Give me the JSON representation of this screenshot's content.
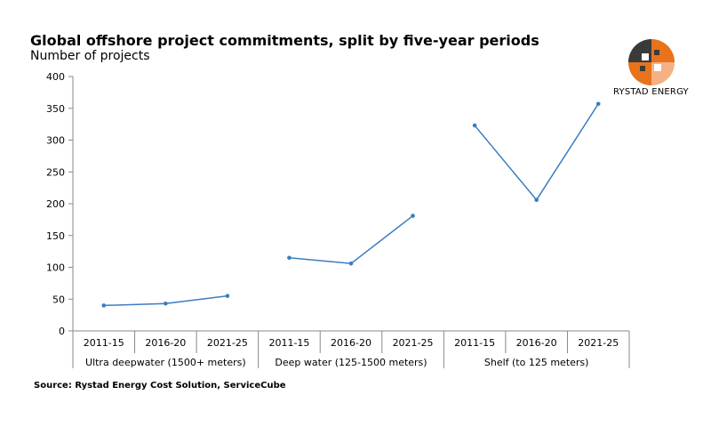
{
  "header": {
    "title": "Global offshore project commitments, split by five-year periods",
    "subtitle": "Number of projects"
  },
  "footer": {
    "source": "Source: Rystad Energy Cost Solution, ServiceCube"
  },
  "logo": {
    "text": "RYSTAD ENERGY",
    "colors": {
      "orange": "#E8731B",
      "dark": "#3a3a3a",
      "light": "#bdbdbd"
    }
  },
  "chart_data": {
    "type": "line",
    "title": "Global offshore project commitments, split by five-year periods",
    "ylabel": "Number of projects",
    "ylim": [
      0,
      400
    ],
    "yticks": [
      0,
      50,
      100,
      150,
      200,
      250,
      300,
      350,
      400
    ],
    "grid": false,
    "legend": "none",
    "line_color": "#3A7DC1",
    "groups": [
      {
        "name": "Ultra deepwater (1500+ meters)",
        "categories": [
          "2011-15",
          "2016-20",
          "2021-25"
        ],
        "values": [
          40,
          43,
          55
        ]
      },
      {
        "name": "Deep water (125-1500 meters)",
        "categories": [
          "2011-15",
          "2016-20",
          "2021-25"
        ],
        "values": [
          115,
          106,
          181
        ]
      },
      {
        "name": "Shelf (to 125 meters)",
        "categories": [
          "2011-15",
          "2016-20",
          "2021-25"
        ],
        "values": [
          323,
          206,
          357
        ]
      }
    ]
  }
}
